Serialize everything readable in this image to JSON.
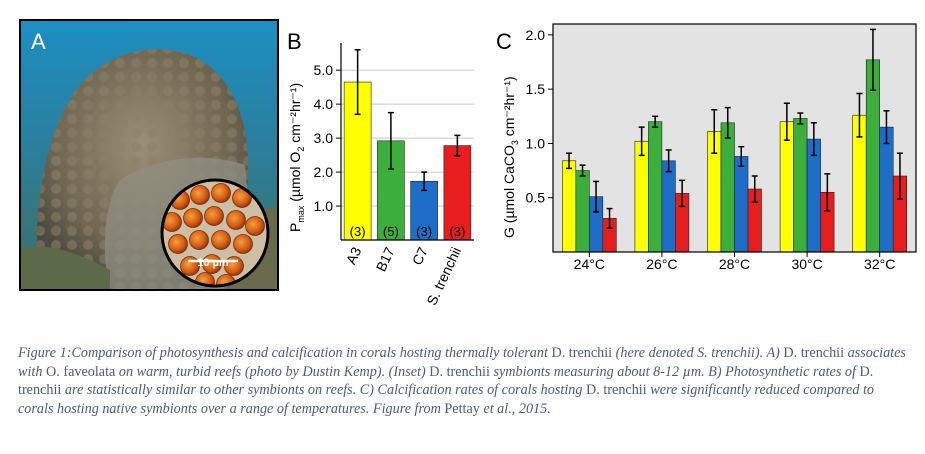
{
  "panel_a": {
    "label": "A",
    "inset_scale_label": "10 µm",
    "photo_subject": "coral colony photo with inset of symbiont cells"
  },
  "chart_data": [
    {
      "panel": "B",
      "type": "bar",
      "categories": [
        "A3",
        "B17",
        "C7",
        "S. trenchii"
      ],
      "values": [
        4.65,
        2.92,
        1.73,
        2.78
      ],
      "errors": [
        0.95,
        0.83,
        0.27,
        0.3
      ],
      "n_labels": [
        "(3)",
        "(5)",
        "(3)",
        "(3)"
      ],
      "colors": [
        "#ffff00",
        "#3cae3c",
        "#1e6ec8",
        "#e61e1e"
      ],
      "ylabel_main": "P",
      "ylabel_sub": "max",
      "ylabel_rest": " (µmol O",
      "ylabel_o2sub": "2",
      "ylabel_units": " cm⁻²hr⁻¹)",
      "ylim": [
        0,
        5.8
      ],
      "yticks": [
        "1.0",
        "2.0",
        "3.0",
        "4.0",
        "5.0"
      ],
      "ytick_values": [
        1,
        2,
        3,
        4,
        5
      ],
      "grid": true
    },
    {
      "panel": "C",
      "type": "bar",
      "categories": [
        "24°C",
        "26°C",
        "28°C",
        "30°C",
        "32°C"
      ],
      "series": [
        {
          "name": "A3",
          "color": "#ffff00",
          "values": [
            0.84,
            1.02,
            1.11,
            1.2,
            1.26
          ],
          "errors": [
            0.07,
            0.13,
            0.2,
            0.17,
            0.2
          ]
        },
        {
          "name": "B17",
          "color": "#3cae3c",
          "values": [
            0.75,
            1.2,
            1.19,
            1.23,
            1.77
          ],
          "errors": [
            0.05,
            0.05,
            0.14,
            0.05,
            0.28
          ]
        },
        {
          "name": "C7",
          "color": "#1e6ec8",
          "values": [
            0.51,
            0.84,
            0.88,
            1.04,
            1.15
          ],
          "errors": [
            0.14,
            0.1,
            0.09,
            0.15,
            0.15
          ]
        },
        {
          "name": "S. trenchii",
          "color": "#e61e1e",
          "values": [
            0.31,
            0.54,
            0.58,
            0.55,
            0.7
          ],
          "errors": [
            0.09,
            0.12,
            0.12,
            0.17,
            0.21
          ]
        }
      ],
      "ylabel_main": "G (µmol CaCO",
      "ylabel_sub": "3",
      "ylabel_units": " cm⁻²hr⁻¹)",
      "ylim": [
        0,
        2.1
      ],
      "yticks": [
        "0.5",
        "1.0",
        "1.5",
        "2.0"
      ],
      "ytick_values": [
        0.5,
        1.0,
        1.5,
        2.0
      ],
      "grid": false
    }
  ],
  "caption": {
    "s1": "Figure 1:Comparison of photosynthesis and calcification in corals hosting thermally tolerant ",
    "s2": "D. trenchii",
    "s3": " (here denoted S. trenchii). ",
    "s4": "A) ",
    "s5": "D. trenchii",
    "s6": " associates with ",
    "s7": "O. faveolata",
    "s8": " on warm, turbid reefs (photo by Dustin Kemp). (Inset) ",
    "s9": "D. trenchii",
    "s10": " symbionts measuring about 8-12 µm. B) Photosynthetic rates of ",
    "s11": "D. trenchii",
    "s12": " are statistically similar to other symbionts on reefs. C) Calcification rates of corals hosting ",
    "s13": "D. trenchii",
    "s14": " were significantly reduced compared to corals hosting native symbionts over a range of temperatures. Figure from ",
    "s15": "Pettay",
    "s16": " et al., 2015."
  }
}
